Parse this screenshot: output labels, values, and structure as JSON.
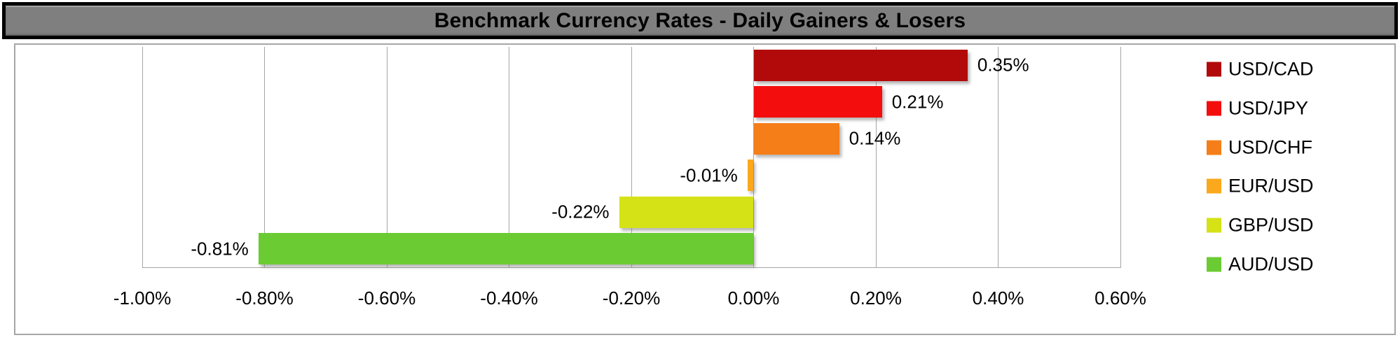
{
  "title": "Benchmark Currency Rates - Daily Gainers & Losers",
  "chart_data": {
    "type": "bar",
    "orientation": "horizontal",
    "title": "Benchmark Currency Rates - Daily Gainers & Losers",
    "categories": [
      "USD/CAD",
      "USD/JPY",
      "USD/CHF",
      "EUR/USD",
      "GBP/USD",
      "AUD/USD"
    ],
    "values": [
      0.35,
      0.21,
      0.14,
      -0.01,
      -0.22,
      -0.81
    ],
    "data_labels": [
      "0.35%",
      "0.21%",
      "0.14%",
      "-0.01%",
      "-0.22%",
      "-0.81%"
    ],
    "series_colors": [
      "#b20a0a",
      "#f40d0d",
      "#f57e18",
      "#fba81c",
      "#d4e216",
      "#6bcb33"
    ],
    "xlabel": "",
    "ylabel": "",
    "x_axis": {
      "min": -1.0,
      "max": 0.6,
      "step": 0.2,
      "unit": "%",
      "tick_values": [
        -1.0,
        -0.8,
        -0.6,
        -0.4,
        -0.2,
        0.0,
        0.2,
        0.4,
        0.6
      ],
      "tick_labels": [
        "-1.00%",
        "-0.80%",
        "-0.60%",
        "-0.40%",
        "-0.20%",
        "0.00%",
        "0.20%",
        "0.40%",
        "0.60%"
      ]
    },
    "grid": true,
    "legend": {
      "position": "right",
      "entries": [
        "USD/CAD",
        "USD/JPY",
        "USD/CHF",
        "EUR/USD",
        "GBP/USD",
        "AUD/USD"
      ]
    }
  },
  "style": {
    "background": "#ffffff",
    "title_bg": "#7f7f7f",
    "title_text_color": "#000000",
    "title_border": "#000000",
    "grid_color": "#a6a6a6",
    "area_border_color": "#a6a6a6",
    "label_color": "#000000"
  }
}
